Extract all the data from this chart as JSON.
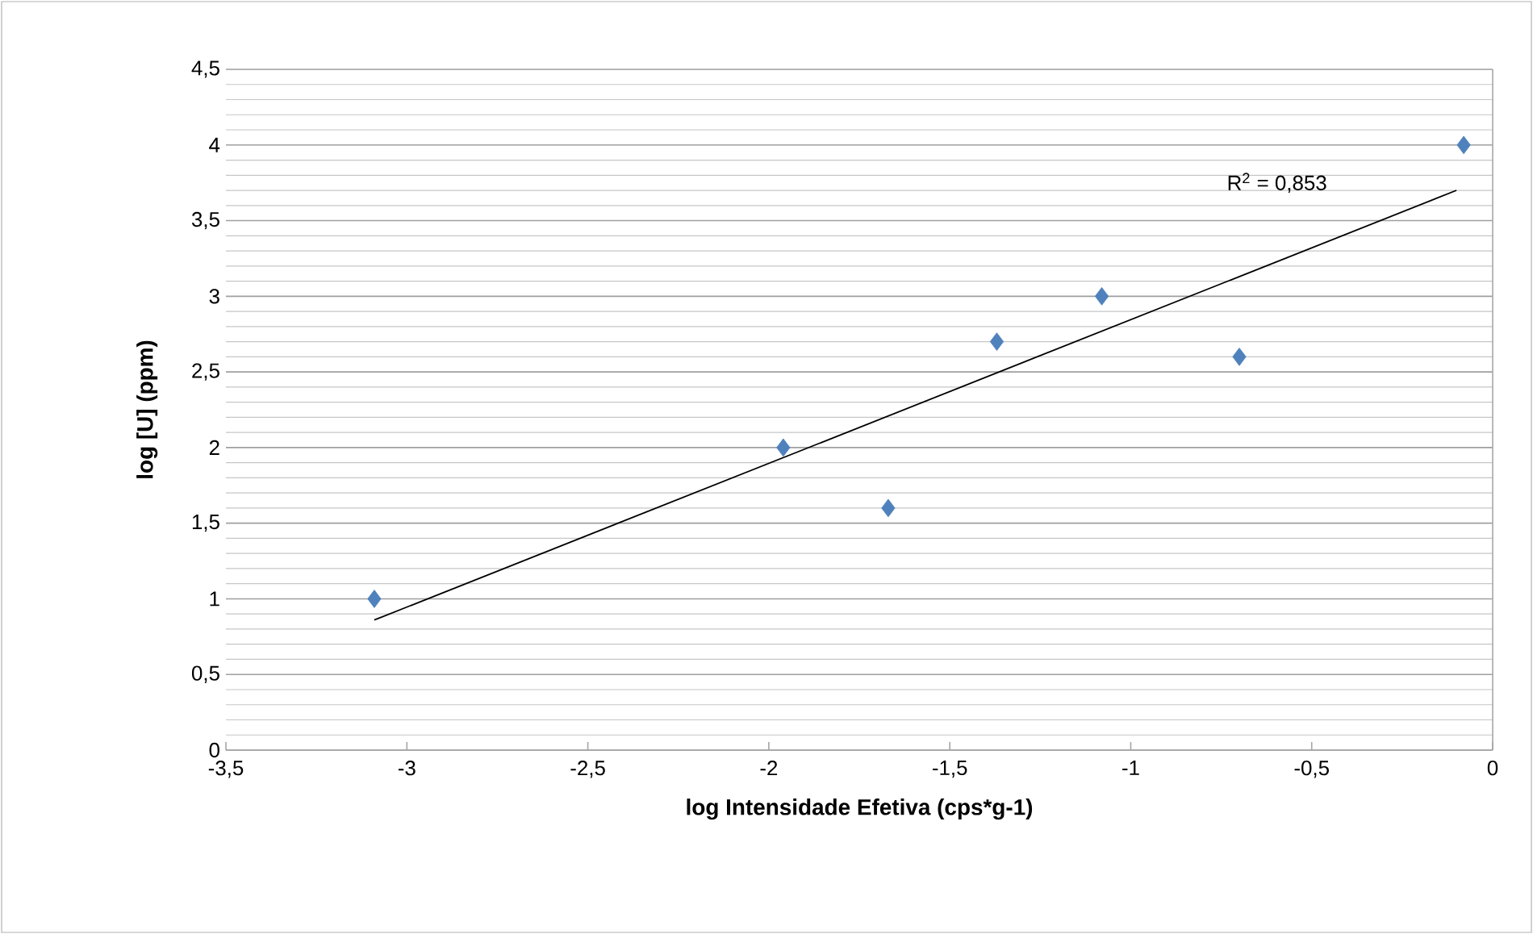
{
  "chart_data": {
    "type": "scatter",
    "xlabel": "log Intensidade Efetiva (cps*g-1)",
    "ylabel": "log  [U]  (ppm)",
    "xlim": [
      -3.5,
      0
    ],
    "ylim": [
      0,
      4.5
    ],
    "xticks": [
      {
        "value": -3.5,
        "label": "-3,5"
      },
      -3,
      {
        "value": -2.5,
        "label": "-2,5"
      },
      -2,
      {
        "value": -1.5,
        "label": "-1,5"
      },
      -1,
      {
        "value": -0.5,
        "label": "-0,5"
      },
      0
    ],
    "yticks": [
      0,
      {
        "value": 0.5,
        "label": "0,5"
      },
      1,
      {
        "value": 1.5,
        "label": "1,5"
      },
      2,
      {
        "value": 2.5,
        "label": "2,5"
      },
      3,
      {
        "value": 3.5,
        "label": "3,5"
      },
      4,
      {
        "value": 4.5,
        "label": "4,5"
      }
    ],
    "grid": "y",
    "series": [
      {
        "marker": "diamond",
        "color": "#4f81bd",
        "x": [
          -3.09,
          -1.96,
          -1.67,
          -1.37,
          -1.08,
          -0.7,
          -0.08
        ],
        "values": [
          1.0,
          2.0,
          1.6,
          2.7,
          3.0,
          2.6,
          4.0
        ]
      },
      {
        "type": "line",
        "color": "#000000",
        "x": [
          -3.09,
          -0.1
        ],
        "values": [
          0.86,
          3.7
        ]
      }
    ],
    "annotations": [
      "R$^{2}$ = 0,853"
    ]
  }
}
